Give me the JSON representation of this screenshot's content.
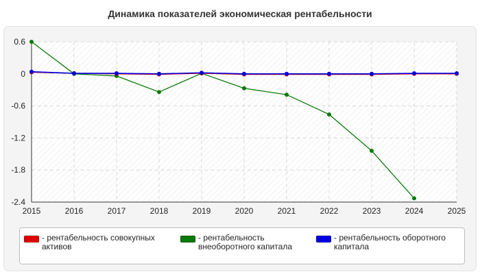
{
  "title": "Динамика показателей экономическая рентабельности",
  "chart_data": {
    "type": "line",
    "x": [
      2015,
      2016,
      2017,
      2018,
      2019,
      2020,
      2021,
      2022,
      2023,
      2024,
      2025
    ],
    "xlim": [
      2015,
      2025
    ],
    "ylim": [
      -2.4,
      0.6
    ],
    "yticks": [
      "0.6",
      "0",
      "-0.6",
      "-1.2",
      "-1.8",
      "-2.4"
    ],
    "ytick_values": [
      0.6,
      0,
      -0.6,
      -1.2,
      -1.8,
      -2.4
    ],
    "xticks": [
      "2015",
      "2016",
      "2017",
      "2018",
      "2019",
      "2020",
      "2021",
      "2022",
      "2023",
      "2024",
      "2025"
    ],
    "grid": true,
    "legend_placement": "bottom",
    "series": [
      {
        "name": "- рентабельность совокупных активов",
        "name_lines": [
          "- рентабельность совокупных",
          "активов"
        ],
        "color": "#e00000",
        "values": [
          0.03,
          0.01,
          0.0,
          -0.01,
          0.01,
          -0.01,
          -0.01,
          -0.01,
          -0.01,
          0.0,
          0.0
        ]
      },
      {
        "name": "- рентабельность внеоборотного капитала",
        "name_lines": [
          "- рентабельность",
          "внеоборотного капитала"
        ],
        "color": "#0a7a0a",
        "values": [
          0.6,
          0.0,
          -0.04,
          -0.34,
          0.01,
          -0.27,
          -0.39,
          -0.76,
          -1.44,
          -2.33,
          null
        ]
      },
      {
        "name": "- рентабельность оборотного капитала",
        "name_lines": [
          "- рентабельность оборотного",
          "капитала"
        ],
        "color": "#0000e0",
        "values": [
          0.04,
          0.01,
          0.01,
          0.0,
          0.02,
          0.0,
          0.0,
          0.0,
          0.0,
          0.01,
          0.01
        ]
      }
    ]
  }
}
